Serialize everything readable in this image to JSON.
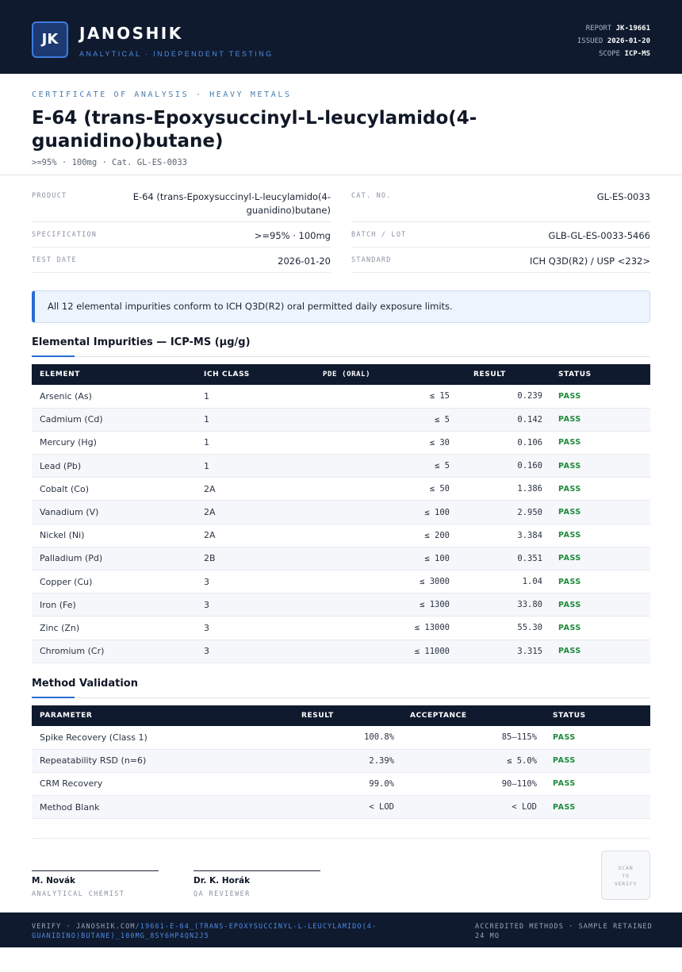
{
  "header": {
    "logo_text": "JK",
    "brand": "JANOSHIK",
    "tagline": "ANALYTICAL · INDEPENDENT TESTING",
    "report_label": "REPORT",
    "report_value": "JK-19661",
    "issued_label": "ISSUED",
    "issued_value": "2026-01-20",
    "scope_label": "SCOPE",
    "scope_value": "ICP-MS"
  },
  "document": {
    "kicker": "CERTIFICATE OF ANALYSIS · HEAVY METALS",
    "title": "E-64 (trans-Epoxysuccinyl-L-leucylamido(4-guanidino)butane)",
    "subline": ">=95% · 100mg  ·  Cat. GL-ES-0033"
  },
  "info": {
    "product_label": "PRODUCT",
    "product_value": "E-64 (trans-Epoxysuccinyl-L-leucylamido(4-guanidino)butane)",
    "cat_label": "CAT. NO.",
    "cat_value": "GL-ES-0033",
    "spec_label": "SPECIFICATION",
    "spec_value": ">=95% · 100mg",
    "batch_label": "BATCH / LOT",
    "batch_value": "GLB-GL-ES-0033-5466",
    "date_label": "TEST DATE",
    "date_value": "2026-01-20",
    "standard_label": "STANDARD",
    "standard_value": "ICH Q3D(R2) / USP <232>"
  },
  "banner": {
    "text": "All 12 elemental impurities conform to ICH Q3D(R2) oral permitted daily exposure limits."
  },
  "impurities": {
    "title": "Elemental Impurities — ICP-MS (µg/g)",
    "headers": [
      "ELEMENT",
      "ICH CLASS",
      "PDE (ORAL)",
      "RESULT",
      "STATUS"
    ],
    "rows": [
      {
        "element": "Arsenic (As)",
        "class": "1",
        "pde": "≤ 15",
        "result": "0.239",
        "status": "PASS"
      },
      {
        "element": "Cadmium (Cd)",
        "class": "1",
        "pde": "≤ 5",
        "result": "0.142",
        "status": "PASS"
      },
      {
        "element": "Mercury (Hg)",
        "class": "1",
        "pde": "≤ 30",
        "result": "0.106",
        "status": "PASS"
      },
      {
        "element": "Lead (Pb)",
        "class": "1",
        "pde": "≤ 5",
        "result": "0.160",
        "status": "PASS"
      },
      {
        "element": "Cobalt (Co)",
        "class": "2A",
        "pde": "≤ 50",
        "result": "1.386",
        "status": "PASS"
      },
      {
        "element": "Vanadium (V)",
        "class": "2A",
        "pde": "≤ 100",
        "result": "2.950",
        "status": "PASS"
      },
      {
        "element": "Nickel (Ni)",
        "class": "2A",
        "pde": "≤ 200",
        "result": "3.384",
        "status": "PASS"
      },
      {
        "element": "Palladium (Pd)",
        "class": "2B",
        "pde": "≤ 100",
        "result": "0.351",
        "status": "PASS"
      },
      {
        "element": "Copper (Cu)",
        "class": "3",
        "pde": "≤ 3000",
        "result": "1.04",
        "status": "PASS"
      },
      {
        "element": "Iron (Fe)",
        "class": "3",
        "pde": "≤ 1300",
        "result": "33.80",
        "status": "PASS"
      },
      {
        "element": "Zinc (Zn)",
        "class": "3",
        "pde": "≤ 13000",
        "result": "55.30",
        "status": "PASS"
      },
      {
        "element": "Chromium (Cr)",
        "class": "3",
        "pde": "≤ 11000",
        "result": "3.315",
        "status": "PASS"
      }
    ]
  },
  "validation": {
    "title": "Method Validation",
    "headers": [
      "PARAMETER",
      "RESULT",
      "ACCEPTANCE",
      "STATUS"
    ],
    "rows": [
      {
        "parameter": "Spike Recovery (Class 1)",
        "result": "100.8%",
        "acceptance": "85–115%",
        "status": "PASS"
      },
      {
        "parameter": "Repeatability RSD (n=6)",
        "result": "2.39%",
        "acceptance": "≤ 5.0%",
        "status": "PASS"
      },
      {
        "parameter": "CRM Recovery",
        "result": "99.0%",
        "acceptance": "90–110%",
        "status": "PASS"
      },
      {
        "parameter": "Method Blank",
        "result": "< LOD",
        "acceptance": "< LOD",
        "status": "PASS"
      }
    ]
  },
  "signatures": {
    "sig1_name": "M. Novák",
    "sig1_role": "ANALYTICAL CHEMIST",
    "sig2_name": "Dr. K. Horák",
    "sig2_role": "QA REVIEWER",
    "qr_line1": "SCAN",
    "qr_line2": "TO",
    "qr_line3": "VERIFY"
  },
  "footer": {
    "verify_prefix": "VERIFY · JANOSHIK.COM",
    "verify_path": "/19661-E-64_(TRANS-EPOXYSUCCINYL-L-LEUCYLAMIDO(4-GUANIDINO)BUTANE)_100MG_8SY6HP4QN2J5",
    "right": "ACCREDITED METHODS · SAMPLE RETAINED 24 MO"
  },
  "colors": {
    "navy": "#0f1a2e",
    "accent": "#2b6cd1",
    "pass": "#1e8a3c"
  }
}
